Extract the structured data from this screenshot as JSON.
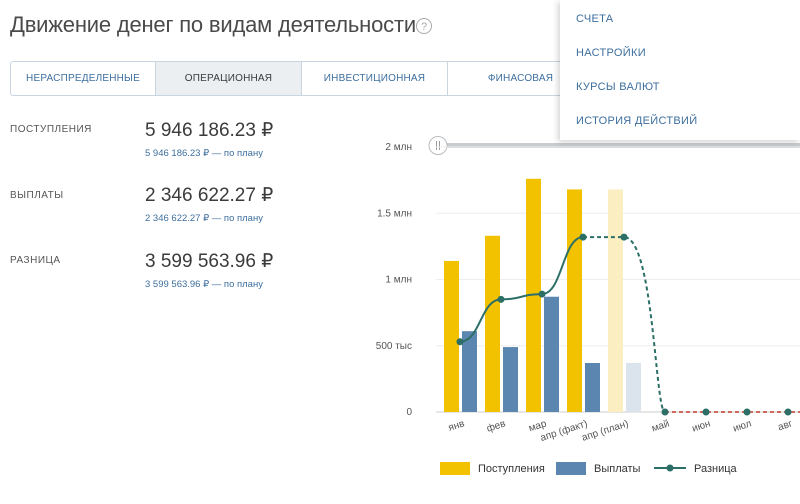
{
  "header": {
    "title": "Движение денег по видам деятельности",
    "help_symbol": "?"
  },
  "tabs": [
    {
      "label": "Нераспределенные",
      "active": false
    },
    {
      "label": "Операционная",
      "active": true
    },
    {
      "label": "Инвестиционная",
      "active": false
    },
    {
      "label": "Финасовая",
      "active": false
    }
  ],
  "menu": {
    "items": [
      "Счета",
      "Настройки",
      "Курсы валют",
      "История действий"
    ]
  },
  "metrics": [
    {
      "label": "ПОСТУПЛЕНИЯ",
      "value": "5 946 186.23 ₽",
      "plan": "5 946 186.23 ₽ — по плану"
    },
    {
      "label": "ВЫПЛАТЫ",
      "value": "2 346 622.27 ₽",
      "plan": "2 346 622.27 ₽ — по плану"
    },
    {
      "label": "РАЗНИЦА",
      "value": "3 599 563.96 ₽",
      "plan": "3 599 563.96 ₽ — по плану"
    }
  ],
  "colors": {
    "income": "#f2c200",
    "payments": "#5b86b0",
    "difference": "#2b6f67",
    "forecast_line": "#c0392b",
    "tab_text": "#3d6f9e"
  },
  "chart_data": {
    "type": "bar",
    "categories": [
      "янв",
      "фев",
      "мар",
      "апр (факт)",
      "апр (план)",
      "май",
      "июн",
      "июл",
      "авг"
    ],
    "y_ticks": [
      "0",
      "500 тыс",
      "1 млн",
      "1.5 млн",
      "2 млн"
    ],
    "ylim": [
      0,
      2000000
    ],
    "series": [
      {
        "name": "Поступления",
        "type": "bar",
        "values": [
          1140000,
          1330000,
          1760000,
          1680000,
          1680000,
          0,
          0,
          0,
          0
        ]
      },
      {
        "name": "Выплаты",
        "type": "bar",
        "values": [
          610000,
          490000,
          870000,
          370000,
          370000,
          0,
          0,
          0,
          0
        ]
      },
      {
        "name": "Разница",
        "type": "line",
        "values": [
          530000,
          850000,
          890000,
          1320000,
          1320000,
          0,
          0,
          0,
          0
        ]
      }
    ],
    "forecast_from_index": 4,
    "legend": [
      "Поступления",
      "Выплаты",
      "Разница"
    ],
    "legend_position": "bottom",
    "grid": true
  }
}
